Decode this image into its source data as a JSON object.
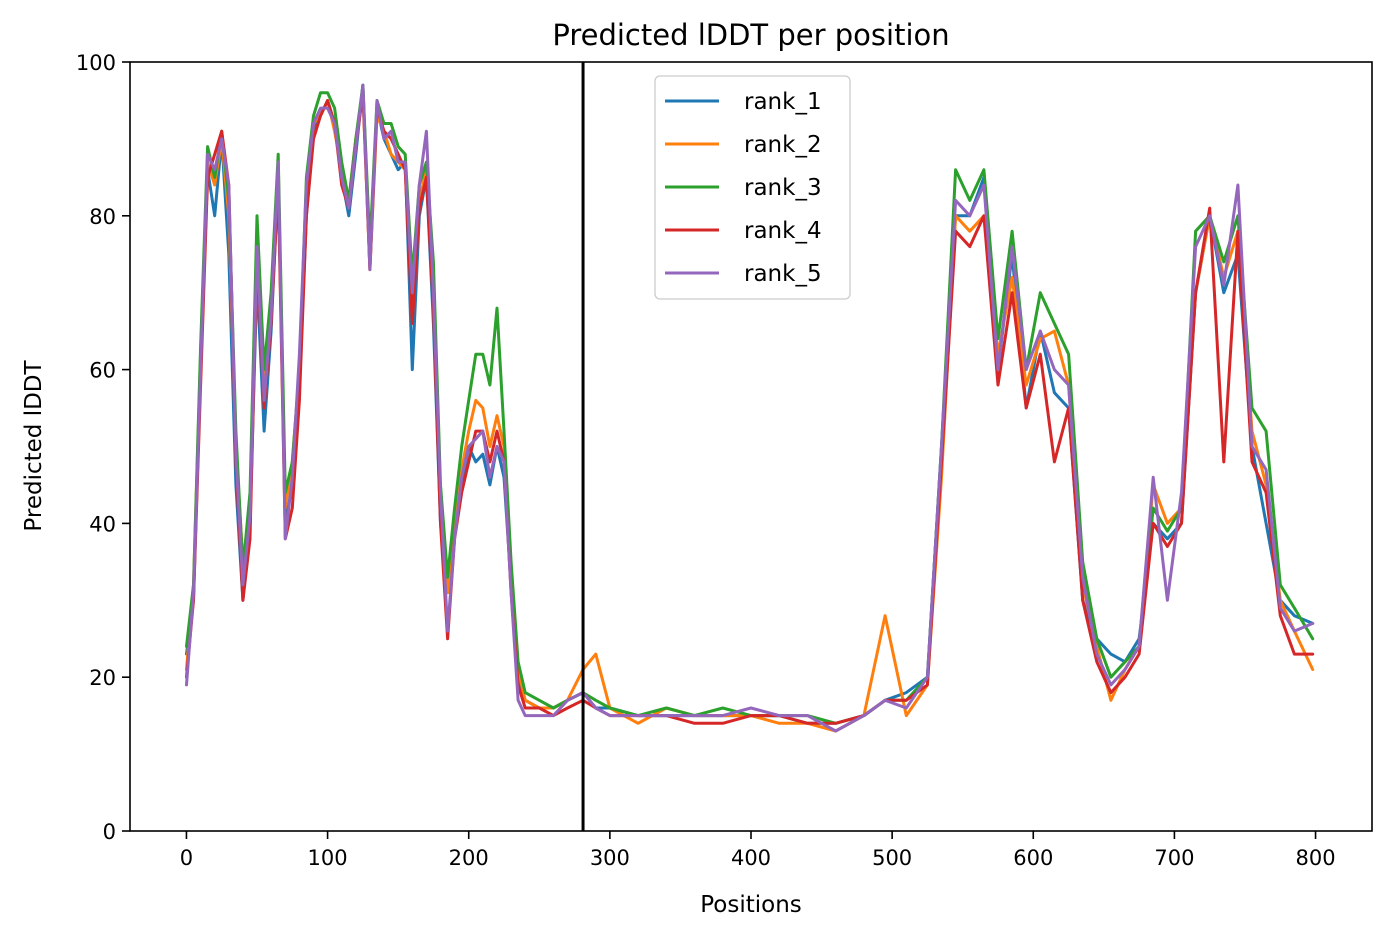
{
  "chart_data": {
    "type": "line",
    "title": "Predicted lDDT per position",
    "xlabel": "Positions",
    "ylabel": "Predicted lDDT",
    "xlim": [
      -40,
      840
    ],
    "ylim": [
      0,
      100
    ],
    "x_ticks": [
      "0",
      "100",
      "200",
      "300",
      "400",
      "500",
      "600",
      "700",
      "800"
    ],
    "y_ticks": [
      "0",
      "20",
      "40",
      "60",
      "80",
      "100"
    ],
    "vertical_line_x": 281,
    "legend_position": "upper-center",
    "grid": false,
    "series": [
      {
        "name": "rank_1",
        "color": "#1f77b4",
        "x": [
          0,
          5,
          10,
          15,
          20,
          25,
          30,
          35,
          40,
          45,
          50,
          55,
          60,
          65,
          70,
          75,
          80,
          85,
          90,
          95,
          100,
          105,
          110,
          115,
          120,
          125,
          130,
          135,
          140,
          145,
          150,
          155,
          160,
          165,
          170,
          175,
          180,
          185,
          190,
          195,
          200,
          205,
          210,
          215,
          220,
          225,
          230,
          235,
          240,
          250,
          260,
          270,
          281,
          290,
          300,
          320,
          340,
          360,
          380,
          400,
          420,
          440,
          460,
          480,
          495,
          510,
          525,
          535,
          545,
          555,
          565,
          575,
          585,
          595,
          605,
          615,
          625,
          635,
          645,
          655,
          665,
          675,
          685,
          695,
          705,
          715,
          725,
          735,
          745,
          755,
          765,
          775,
          785,
          798
        ],
        "values": [
          23,
          30,
          60,
          86,
          80,
          90,
          75,
          45,
          30,
          40,
          72,
          52,
          65,
          85,
          40,
          45,
          58,
          80,
          91,
          93,
          95,
          92,
          85,
          80,
          88,
          97,
          74,
          94,
          90,
          88,
          86,
          87,
          60,
          80,
          85,
          66,
          40,
          31,
          40,
          45,
          50,
          48,
          49,
          45,
          50,
          46,
          32,
          20,
          17,
          16,
          16,
          17,
          18,
          16,
          16,
          15,
          15,
          15,
          15,
          15,
          15,
          14,
          14,
          15,
          17,
          18,
          20,
          50,
          80,
          80,
          85,
          60,
          75,
          55,
          65,
          57,
          55,
          30,
          25,
          23,
          22,
          25,
          40,
          38,
          40,
          70,
          80,
          70,
          75,
          50,
          40,
          30,
          28,
          27
        ]
      },
      {
        "name": "rank_2",
        "color": "#ff7f0e",
        "x": [
          0,
          5,
          10,
          15,
          20,
          25,
          30,
          35,
          40,
          45,
          50,
          55,
          60,
          65,
          70,
          75,
          80,
          85,
          90,
          95,
          100,
          105,
          110,
          115,
          120,
          125,
          130,
          135,
          140,
          145,
          150,
          155,
          160,
          165,
          170,
          175,
          180,
          185,
          190,
          195,
          200,
          205,
          210,
          215,
          220,
          225,
          230,
          235,
          240,
          250,
          260,
          270,
          281,
          290,
          300,
          320,
          340,
          360,
          380,
          400,
          420,
          440,
          460,
          480,
          495,
          510,
          525,
          535,
          545,
          555,
          565,
          575,
          585,
          595,
          605,
          615,
          625,
          635,
          645,
          655,
          665,
          675,
          685,
          695,
          705,
          715,
          725,
          735,
          745,
          755,
          765,
          775,
          785,
          798
        ],
        "values": [
          21,
          32,
          62,
          87,
          84,
          90,
          80,
          50,
          35,
          42,
          74,
          58,
          68,
          86,
          42,
          48,
          60,
          82,
          92,
          93,
          95,
          91,
          86,
          82,
          90,
          96,
          73,
          93,
          91,
          88,
          87,
          86,
          68,
          82,
          86,
          70,
          42,
          31,
          40,
          47,
          52,
          56,
          55,
          50,
          54,
          50,
          34,
          21,
          17,
          16,
          16,
          17,
          21,
          23,
          16,
          14,
          16,
          15,
          15,
          15,
          14,
          14,
          13,
          15,
          28,
          15,
          19,
          46,
          80,
          78,
          80,
          62,
          72,
          58,
          64,
          65,
          58,
          32,
          24,
          17,
          21,
          24,
          45,
          40,
          42,
          70,
          80,
          72,
          78,
          52,
          45,
          30,
          26,
          21
        ]
      },
      {
        "name": "rank_3",
        "color": "#2ca02c",
        "x": [
          0,
          5,
          10,
          15,
          20,
          25,
          30,
          35,
          40,
          45,
          50,
          55,
          60,
          65,
          70,
          75,
          80,
          85,
          90,
          95,
          100,
          105,
          110,
          115,
          120,
          125,
          130,
          135,
          140,
          145,
          150,
          155,
          160,
          165,
          170,
          175,
          180,
          185,
          190,
          195,
          200,
          205,
          210,
          215,
          220,
          225,
          230,
          235,
          240,
          250,
          260,
          270,
          281,
          290,
          300,
          320,
          340,
          360,
          380,
          400,
          420,
          440,
          460,
          480,
          495,
          510,
          525,
          535,
          545,
          555,
          565,
          575,
          585,
          595,
          605,
          615,
          625,
          635,
          645,
          655,
          665,
          675,
          685,
          695,
          705,
          715,
          725,
          735,
          745,
          755,
          765,
          775,
          785,
          798
        ],
        "values": [
          24,
          32,
          63,
          89,
          85,
          91,
          82,
          52,
          34,
          44,
          80,
          60,
          70,
          88,
          44,
          48,
          60,
          85,
          93,
          96,
          96,
          94,
          87,
          82,
          90,
          97,
          76,
          95,
          92,
          92,
          89,
          88,
          72,
          84,
          87,
          74,
          45,
          33,
          42,
          50,
          56,
          62,
          62,
          58,
          68,
          52,
          35,
          22,
          18,
          17,
          16,
          17,
          18,
          17,
          16,
          15,
          16,
          15,
          16,
          15,
          15,
          15,
          14,
          15,
          17,
          17,
          20,
          50,
          86,
          82,
          86,
          64,
          78,
          60,
          70,
          66,
          62,
          35,
          25,
          20,
          22,
          24,
          42,
          39,
          42,
          78,
          80,
          74,
          80,
          55,
          52,
          32,
          29,
          25
        ]
      },
      {
        "name": "rank_4",
        "color": "#d62728",
        "x": [
          0,
          5,
          10,
          15,
          20,
          25,
          30,
          35,
          40,
          45,
          50,
          55,
          60,
          65,
          70,
          75,
          80,
          85,
          90,
          95,
          100,
          105,
          110,
          115,
          120,
          125,
          130,
          135,
          140,
          145,
          150,
          155,
          160,
          165,
          170,
          175,
          180,
          185,
          190,
          195,
          200,
          205,
          210,
          215,
          220,
          225,
          230,
          235,
          240,
          250,
          260,
          270,
          281,
          290,
          300,
          320,
          340,
          360,
          380,
          400,
          420,
          440,
          460,
          480,
          495,
          510,
          525,
          535,
          545,
          555,
          565,
          575,
          585,
          595,
          605,
          615,
          625,
          635,
          645,
          655,
          665,
          675,
          685,
          695,
          705,
          715,
          725,
          735,
          745,
          755,
          765,
          775,
          785,
          798
        ],
        "values": [
          20,
          30,
          58,
          85,
          88,
          91,
          84,
          48,
          30,
          38,
          75,
          55,
          66,
          84,
          38,
          42,
          56,
          80,
          90,
          93,
          95,
          92,
          84,
          81,
          89,
          96,
          73,
          94,
          91,
          90,
          88,
          86,
          66,
          81,
          85,
          68,
          40,
          25,
          38,
          44,
          48,
          52,
          52,
          48,
          52,
          48,
          31,
          19,
          16,
          16,
          15,
          16,
          17,
          16,
          15,
          15,
          15,
          14,
          14,
          15,
          15,
          14,
          14,
          15,
          17,
          17,
          19,
          48,
          78,
          76,
          80,
          58,
          70,
          55,
          62,
          48,
          55,
          30,
          22,
          18,
          20,
          23,
          40,
          37,
          40,
          70,
          81,
          48,
          78,
          48,
          44,
          28,
          23,
          23
        ]
      },
      {
        "name": "rank_5",
        "color": "#9467bd",
        "x": [
          0,
          5,
          10,
          15,
          20,
          25,
          30,
          35,
          40,
          45,
          50,
          55,
          60,
          65,
          70,
          75,
          80,
          85,
          90,
          95,
          100,
          105,
          110,
          115,
          120,
          125,
          130,
          135,
          140,
          145,
          150,
          155,
          160,
          165,
          170,
          175,
          180,
          185,
          190,
          195,
          200,
          205,
          210,
          215,
          220,
          225,
          230,
          235,
          240,
          250,
          260,
          270,
          281,
          290,
          300,
          320,
          340,
          360,
          380,
          400,
          420,
          440,
          460,
          480,
          495,
          510,
          525,
          535,
          545,
          555,
          565,
          575,
          585,
          595,
          605,
          615,
          625,
          635,
          645,
          655,
          665,
          675,
          685,
          695,
          705,
          715,
          725,
          735,
          745,
          755,
          765,
          775,
          785,
          798
        ],
        "values": [
          19,
          31,
          60,
          88,
          86,
          90,
          84,
          49,
          32,
          41,
          76,
          56,
          67,
          87,
          38,
          46,
          62,
          84,
          92,
          94,
          94,
          92,
          85,
          81,
          89,
          97,
          73,
          95,
          90,
          91,
          87,
          87,
          70,
          84,
          91,
          70,
          44,
          26,
          38,
          46,
          50,
          51,
          52,
          46,
          50,
          48,
          31,
          17,
          15,
          15,
          15,
          17,
          18,
          16,
          15,
          15,
          15,
          15,
          15,
          16,
          15,
          15,
          13,
          15,
          17,
          16,
          20,
          50,
          82,
          80,
          84,
          60,
          76,
          60,
          65,
          60,
          58,
          33,
          23,
          19,
          21,
          24,
          46,
          30,
          44,
          76,
          80,
          71,
          84,
          50,
          47,
          29,
          26,
          27
        ]
      }
    ]
  }
}
